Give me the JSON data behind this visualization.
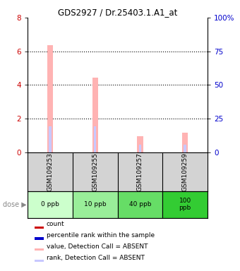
{
  "title": "GDS2927 / Dr.25403.1.A1_at",
  "samples": [
    "GSM109253",
    "GSM109255",
    "GSM109257",
    "GSM109259"
  ],
  "doses": [
    "0 ppb",
    "10 ppb",
    "40 ppb",
    "100\nppb"
  ],
  "dose_colors": [
    "#ccffcc",
    "#99ee99",
    "#66dd66",
    "#33cc33"
  ],
  "bar_values": [
    6.35,
    4.45,
    0.95,
    1.15
  ],
  "bar_colors_absent": [
    "#ffb3b3",
    "#ffb3b3",
    "#ffb3b3",
    "#ffb3b3"
  ],
  "rank_values": [
    1.55,
    1.55,
    0.45,
    0.45
  ],
  "rank_colors_absent": [
    "#c8c8ff",
    "#c8c8ff",
    "#c8c8ff",
    "#c8c8ff"
  ],
  "left_ylim": [
    0,
    8
  ],
  "left_yticks": [
    0,
    2,
    4,
    6,
    8
  ],
  "right_ylim": [
    0,
    100
  ],
  "right_yticks": [
    0,
    25,
    50,
    75,
    100
  ],
  "left_tick_color": "#cc0000",
  "right_tick_color": "#0000cc",
  "background_color": "#ffffff",
  "plot_bg_color": "#ffffff",
  "sample_bg_color": "#d3d3d3",
  "legend_items": [
    {
      "color": "#cc0000",
      "label": "count"
    },
    {
      "color": "#0000cc",
      "label": "percentile rank within the sample"
    },
    {
      "color": "#ffb3b3",
      "label": "value, Detection Call = ABSENT"
    },
    {
      "color": "#c8c8ff",
      "label": "rank, Detection Call = ABSENT"
    }
  ]
}
